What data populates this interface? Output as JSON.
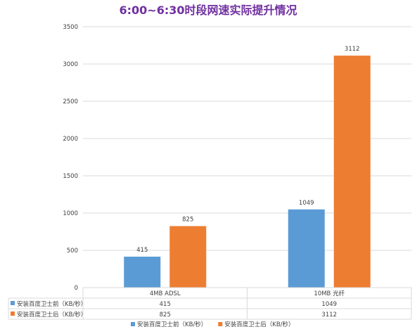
{
  "chart_data": {
    "type": "bar",
    "title": "6:00~6:30时段网速实际提升情况",
    "categories": [
      "4MB ADSL",
      "10MB 光纤"
    ],
    "series": [
      {
        "name": "安装百度卫士前（KB/秒）",
        "values": [
          415,
          1049
        ],
        "color": "#5b9bd5"
      },
      {
        "name": "安装百度卫士后（KB/秒）",
        "values": [
          825,
          3112
        ],
        "color": "#ed7d31"
      }
    ],
    "ylim": [
      0,
      3500
    ],
    "yticks": [
      0,
      500,
      1000,
      1500,
      2000,
      2500,
      3000,
      3500
    ],
    "grid": true,
    "data_table": true,
    "legend_position": "bottom"
  }
}
